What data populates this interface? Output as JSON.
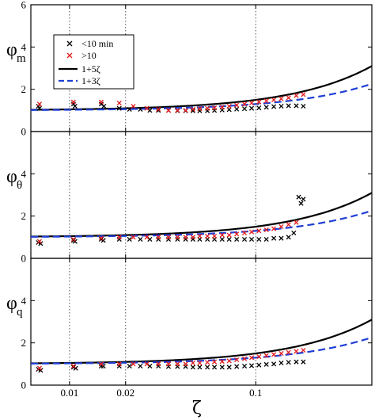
{
  "chart_data": {
    "type": "scatter",
    "xlabel": "ζ",
    "x_scale": "log",
    "xlim": [
      0.0062,
      0.42
    ],
    "x_ticks": [
      {
        "value": 0.01,
        "label": "0.01"
      },
      {
        "value": 0.02,
        "label": "0.02"
      },
      {
        "value": 0.1,
        "label": "0.1"
      }
    ],
    "grid": "dotted vertical",
    "legend": {
      "placement": "top-left of top panel",
      "entries": [
        {
          "label": "<10 min",
          "color": "#000000",
          "style": "marker-x"
        },
        {
          "label": ">10",
          "color": "#e41a1c",
          "style": "marker-x"
        },
        {
          "label": "1+5ζ",
          "color": "#000000",
          "style": "solid"
        },
        {
          "label": "1+3ζ",
          "color": "#1f3fd6",
          "style": "dashed"
        }
      ]
    },
    "panels": [
      {
        "ylabel": "φ",
        "ylabel_sub": "m",
        "ylim": [
          0,
          6
        ],
        "yticks": [
          "0",
          "2",
          "4",
          "6"
        ],
        "series": [
          {
            "name": "<10 min",
            "color": "#000000",
            "marker": "x",
            "x": [
              0.0068,
              0.0069,
              0.0105,
              0.0107,
              0.0148,
              0.0153,
              0.0185,
              0.021,
              0.024,
              0.027,
              0.03,
              0.034,
              0.038,
              0.042,
              0.046,
              0.05,
              0.055,
              0.06,
              0.066,
              0.072,
              0.079,
              0.087,
              0.095,
              0.104,
              0.114,
              0.125,
              0.137,
              0.15,
              0.165,
              0.18
            ],
            "y": [
              1.2,
              1.1,
              1.3,
              1.2,
              1.3,
              1.2,
              1.1,
              1.05,
              1.05,
              1.0,
              1.0,
              1.0,
              0.98,
              0.98,
              0.98,
              0.98,
              0.98,
              1.0,
              1.02,
              1.04,
              1.06,
              1.08,
              1.1,
              1.12,
              1.15,
              1.18,
              1.2,
              1.22,
              1.22,
              1.2
            ]
          },
          {
            "name": ">10",
            "color": "#e41a1c",
            "marker": "x",
            "x": [
              0.0069,
              0.0105,
              0.0148,
              0.0185,
              0.022,
              0.026,
              0.03,
              0.034,
              0.038,
              0.042,
              0.046,
              0.05,
              0.055,
              0.06,
              0.066,
              0.072,
              0.079,
              0.087,
              0.095,
              0.104,
              0.114,
              0.125,
              0.137,
              0.15,
              0.165,
              0.18
            ],
            "y": [
              1.3,
              1.4,
              1.4,
              1.35,
              1.2,
              1.1,
              1.05,
              1.0,
              1.0,
              1.0,
              1.05,
              1.08,
              1.1,
              1.12,
              1.15,
              1.2,
              1.25,
              1.3,
              1.35,
              1.4,
              1.45,
              1.5,
              1.55,
              1.6,
              1.7,
              1.75
            ]
          }
        ]
      },
      {
        "ylabel": "φ",
        "ylabel_sub": "θ",
        "ylim": [
          0,
          6
        ],
        "yticks": [
          "0",
          "2",
          "4"
        ],
        "series": [
          {
            "name": "<10 min",
            "color": "#000000",
            "marker": "x",
            "x": [
              0.0068,
              0.007,
              0.0105,
              0.0107,
              0.0148,
              0.0152,
              0.0185,
              0.021,
              0.024,
              0.027,
              0.03,
              0.034,
              0.038,
              0.042,
              0.046,
              0.05,
              0.055,
              0.06,
              0.066,
              0.072,
              0.079,
              0.087,
              0.095,
              0.104,
              0.114,
              0.125,
              0.137,
              0.15,
              0.16,
              0.17,
              0.175,
              0.18
            ],
            "y": [
              0.75,
              0.7,
              0.85,
              0.8,
              0.9,
              0.85,
              0.9,
              0.9,
              0.9,
              0.9,
              0.9,
              0.9,
              0.9,
              0.9,
              0.9,
              0.9,
              0.9,
              0.9,
              0.9,
              0.9,
              0.9,
              0.9,
              0.9,
              0.9,
              0.9,
              0.95,
              0.95,
              1.0,
              1.2,
              2.9,
              2.6,
              2.8
            ]
          },
          {
            "name": ">10",
            "color": "#e41a1c",
            "marker": "x",
            "x": [
              0.0069,
              0.0105,
              0.0148,
              0.0185,
              0.022,
              0.026,
              0.03,
              0.034,
              0.038,
              0.042,
              0.046,
              0.05,
              0.055,
              0.06,
              0.066,
              0.072,
              0.079,
              0.087,
              0.095,
              0.104,
              0.114,
              0.125,
              0.137,
              0.15,
              0.165
            ],
            "y": [
              0.8,
              0.9,
              0.95,
              1.0,
              1.0,
              1.0,
              1.0,
              1.0,
              1.0,
              1.0,
              1.0,
              1.05,
              1.05,
              1.05,
              1.1,
              1.1,
              1.15,
              1.2,
              1.25,
              1.3,
              1.35,
              1.4,
              1.5,
              1.6,
              1.7
            ]
          }
        ]
      },
      {
        "ylabel": "φ",
        "ylabel_sub": "q",
        "ylim": [
          0,
          6
        ],
        "yticks": [
          "0",
          "2",
          "4"
        ],
        "series": [
          {
            "name": "<10 min",
            "color": "#000000",
            "marker": "x",
            "x": [
              0.0068,
              0.007,
              0.0105,
              0.0108,
              0.0148,
              0.0152,
              0.0185,
              0.021,
              0.024,
              0.027,
              0.03,
              0.034,
              0.038,
              0.042,
              0.046,
              0.05,
              0.055,
              0.06,
              0.066,
              0.072,
              0.079,
              0.087,
              0.095,
              0.104,
              0.114,
              0.125,
              0.137,
              0.15,
              0.165,
              0.18
            ],
            "y": [
              0.75,
              0.7,
              0.85,
              0.8,
              0.9,
              0.9,
              0.9,
              0.9,
              0.9,
              0.9,
              0.9,
              0.88,
              0.88,
              0.88,
              0.85,
              0.85,
              0.85,
              0.85,
              0.85,
              0.85,
              0.88,
              0.9,
              0.92,
              0.95,
              0.98,
              1.0,
              1.05,
              1.08,
              1.1,
              1.1
            ]
          },
          {
            "name": ">10",
            "color": "#e41a1c",
            "marker": "x",
            "x": [
              0.0069,
              0.0105,
              0.0148,
              0.0185,
              0.022,
              0.026,
              0.03,
              0.034,
              0.038,
              0.042,
              0.046,
              0.05,
              0.055,
              0.06,
              0.066,
              0.072,
              0.079,
              0.087,
              0.095,
              0.104,
              0.114,
              0.125,
              0.137,
              0.15,
              0.165,
              0.18
            ],
            "y": [
              0.8,
              0.9,
              1.0,
              1.0,
              1.0,
              1.0,
              1.0,
              1.0,
              1.0,
              1.0,
              1.05,
              1.05,
              1.08,
              1.1,
              1.12,
              1.15,
              1.2,
              1.25,
              1.3,
              1.35,
              1.4,
              1.45,
              1.5,
              1.55,
              1.6,
              1.65
            ]
          }
        ]
      }
    ],
    "curves": [
      {
        "name": "1+5ζ",
        "slope": 5,
        "color": "#000000",
        "style": "solid"
      },
      {
        "name": "1+3ζ",
        "slope": 3,
        "color": "#1f3fd6",
        "style": "dashed"
      }
    ]
  }
}
